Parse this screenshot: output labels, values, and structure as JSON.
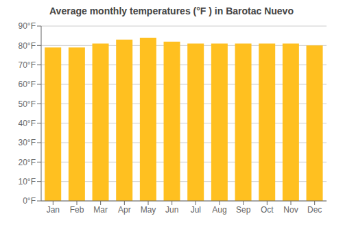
{
  "chart_data": {
    "type": "bar",
    "title": "Average monthly temperatures (°F ) in Barotac Nuevo",
    "categories": [
      "Jan",
      "Feb",
      "Mar",
      "Apr",
      "May",
      "Jun",
      "Jul",
      "Aug",
      "Sep",
      "Oct",
      "Nov",
      "Dec"
    ],
    "values": [
      79,
      79,
      81,
      83,
      84,
      82,
      81,
      81,
      81,
      81,
      81,
      80
    ],
    "color": "#FFC020",
    "ylim": [
      0,
      90
    ],
    "yticks": [
      {
        "value": 0,
        "label": "0°F"
      },
      {
        "value": 10,
        "label": "10°F"
      },
      {
        "value": 20,
        "label": "20°F"
      },
      {
        "value": 30,
        "label": "30°F"
      },
      {
        "value": 40,
        "label": "40°F"
      },
      {
        "value": 50,
        "label": "50°F"
      },
      {
        "value": 60,
        "label": "60°F"
      },
      {
        "value": 70,
        "label": "70°F"
      },
      {
        "value": 80,
        "label": "80°F"
      },
      {
        "value": 90,
        "label": "90°F"
      }
    ],
    "grid": true
  }
}
